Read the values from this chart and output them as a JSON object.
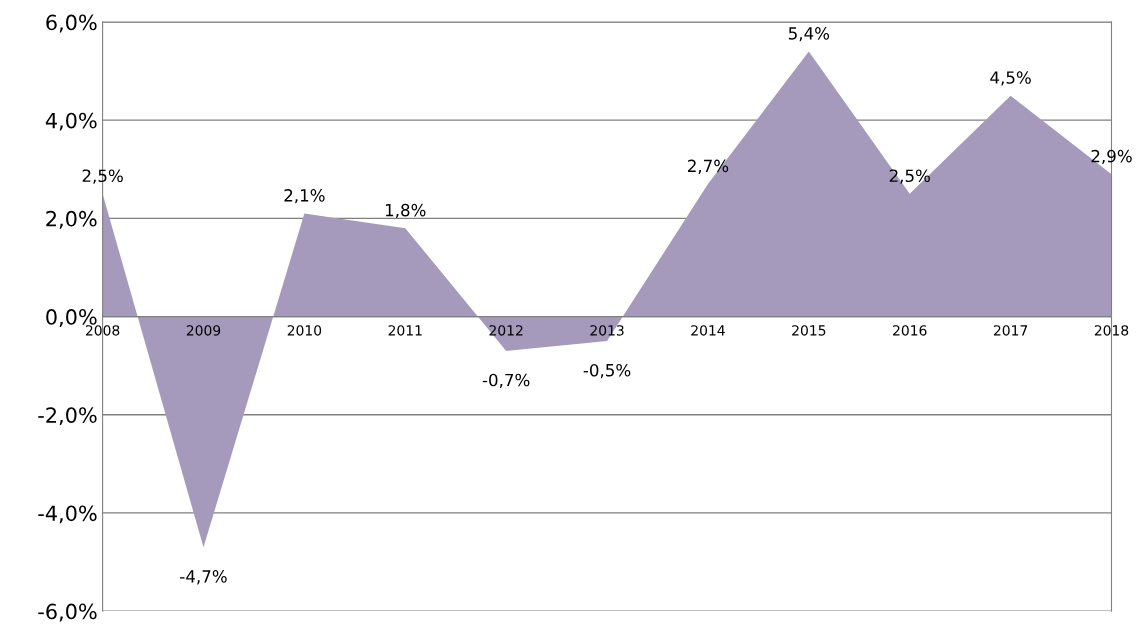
{
  "chart_data": {
    "type": "area",
    "categories": [
      "2008",
      "2009",
      "2010",
      "2011",
      "2012",
      "2013",
      "2014",
      "2015",
      "2016",
      "2017",
      "2018"
    ],
    "values": [
      2.5,
      -4.7,
      2.1,
      1.8,
      -0.7,
      -0.5,
      2.7,
      5.4,
      2.5,
      4.5,
      2.9
    ],
    "value_labels": [
      "2,5%",
      "-4,7%",
      "2,1%",
      "1,8%",
      "-0,7%",
      "-0,5%",
      "2,7%",
      "5,4%",
      "2,5%",
      "4,5%",
      "2,9%"
    ],
    "color": "#a599bc",
    "ylim": [
      -6,
      6
    ],
    "yticks": [
      {
        "value": -6,
        "label": "-6,0%"
      },
      {
        "value": -4,
        "label": "-4,0%"
      },
      {
        "value": -2,
        "label": "-2,0%"
      },
      {
        "value": 0,
        "label": "0,0%"
      },
      {
        "value": 2,
        "label": "2,0%"
      },
      {
        "value": 4,
        "label": "4,0%"
      },
      {
        "value": 6,
        "label": "6,0%"
      }
    ],
    "grid": "y"
  }
}
